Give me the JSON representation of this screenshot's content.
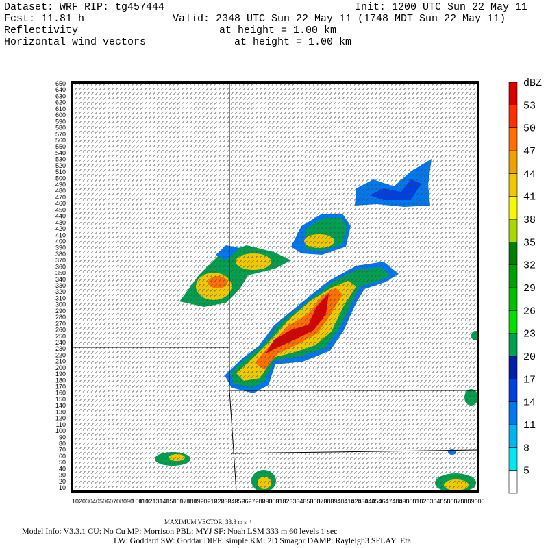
{
  "header": {
    "dataset": "Dataset: WRF  RIP: tg457444",
    "init": "Init: 1200 UTC Sun 22 May 11",
    "fcst": "Fcst:    11.81 h",
    "valid": "Valid: 2348 UTC Sun 22 May 11 (1748 MDT Sun 22 May 11)",
    "field1": "Reflectivity",
    "field1_height": "at height =  1.00 km",
    "field2": "Horizontal wind vectors",
    "field2_height": "at height =  1.00 km"
  },
  "plot": {
    "yticks": [
      10,
      20,
      30,
      40,
      50,
      60,
      70,
      80,
      90,
      100,
      110,
      120,
      130,
      140,
      150,
      160,
      170,
      180,
      190,
      200,
      210,
      220,
      230,
      240,
      250,
      260,
      270,
      280,
      290,
      300,
      310,
      320,
      330,
      340,
      350,
      360,
      370,
      380,
      390,
      400,
      410,
      420,
      430,
      440,
      450,
      460,
      470,
      480,
      490,
      500,
      510,
      520,
      530,
      540,
      550,
      560,
      570,
      580,
      590,
      600,
      610,
      620,
      630,
      640,
      650
    ],
    "xticks": [
      10,
      20,
      30,
      40,
      50,
      60,
      70,
      80,
      90,
      100,
      110,
      120,
      130,
      140,
      150,
      160,
      170,
      180,
      190,
      200,
      210,
      220,
      230,
      240,
      250,
      260,
      270,
      280,
      290,
      300,
      310,
      320,
      330,
      340,
      350,
      360,
      370,
      380,
      390,
      400,
      410,
      420,
      430,
      440,
      450,
      460,
      470,
      480,
      490,
      500,
      510,
      520,
      530,
      540,
      550,
      560,
      570,
      580,
      590,
      600
    ]
  },
  "colorbar": {
    "unit": "dBZ",
    "levels": [
      5,
      8,
      11,
      14,
      17,
      20,
      23,
      26,
      29,
      32,
      35,
      38,
      41,
      44,
      47,
      50,
      53
    ],
    "colors": [
      "#ffffff",
      "#00e8f0",
      "#00b4f0",
      "#0078f0",
      "#0040e0",
      "#0020a8",
      "#00a050",
      "#00e000",
      "#00c000",
      "#00a000",
      "#008000",
      "#a8d800",
      "#f8f800",
      "#f0c800",
      "#f0a000",
      "#ff7000",
      "#ff3000",
      "#d80000"
    ]
  },
  "footer": {
    "max_vector": "MAXIMUM VECTOR:  33.8 m s⁻¹",
    "model_info": "Model Info: V3.3.1    CU: No Cu    MP: Morrison    PBL: MYJ    SF: Noah LSM    333 m    60 levels    1 sec",
    "physics": "LW: Goddard SW: Goddar DIFF: simple KM: 2D Smagor DAMP: Rayleigh3  SFLAY: Eta"
  }
}
